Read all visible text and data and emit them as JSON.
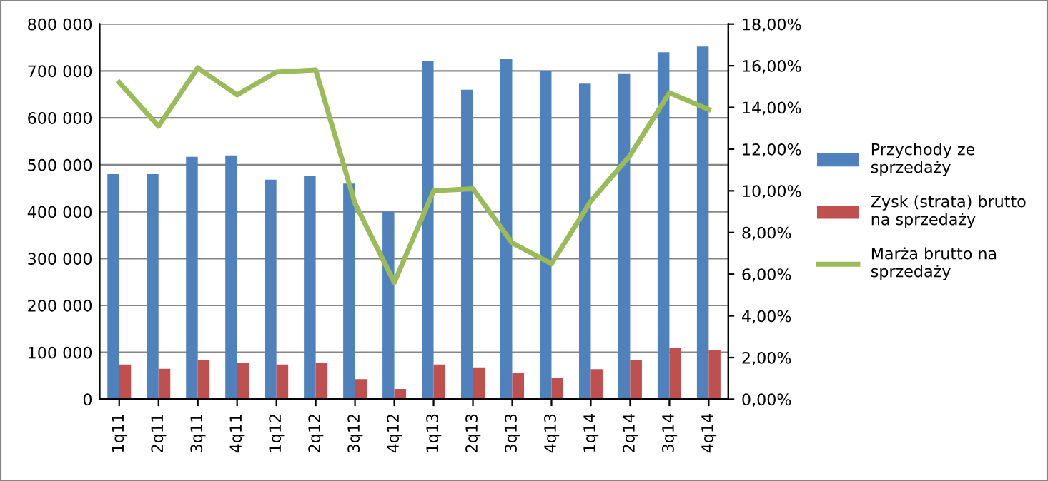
{
  "chart_data": {
    "type": "bar",
    "categories": [
      "1q11",
      "2q11",
      "3q11",
      "4q11",
      "1q12",
      "2q12",
      "3q12",
      "4q12",
      "1q13",
      "2q13",
      "3q13",
      "4q13",
      "1q14",
      "2q14",
      "3q14",
      "4q14"
    ],
    "series": [
      {
        "name": "Przychody ze sprzedaży",
        "color": "#4f81bd",
        "values": [
          480000,
          480000,
          517000,
          520000,
          468000,
          477000,
          460000,
          400000,
          722000,
          660000,
          725000,
          700000,
          673000,
          695000,
          740000,
          752000
        ]
      },
      {
        "name": "Zysk (strata) brutto na sprzedaży",
        "color": "#c0504d",
        "values": [
          74000,
          65000,
          83000,
          77000,
          74000,
          77000,
          43000,
          22000,
          74000,
          68000,
          56000,
          46000,
          64000,
          83000,
          110000,
          104000
        ]
      },
      {
        "name": "Marża brutto na sprzedaży",
        "color": "#9bbb59",
        "type": "line",
        "axis": "y2",
        "values": [
          15.2,
          13.1,
          15.9,
          14.6,
          15.7,
          15.8,
          9.4,
          5.6,
          10.0,
          10.1,
          7.5,
          6.5,
          9.5,
          11.7,
          14.7,
          13.9
        ]
      }
    ],
    "ylim": [
      0,
      800000
    ],
    "yticks": [
      0,
      {
        "value": 100000,
        "label": "100 000"
      },
      {
        "value": 200000,
        "label": "200 000"
      },
      {
        "value": 300000,
        "label": "300 000"
      },
      {
        "value": 400000,
        "label": "400 000"
      },
      {
        "value": 500000,
        "label": "500 000"
      },
      {
        "value": 600000,
        "label": "600 000"
      },
      {
        "value": 700000,
        "label": "700 000"
      },
      {
        "value": 800000,
        "label": "800 000"
      }
    ],
    "y2lim": [
      0,
      18
    ],
    "y2ticks": [
      {
        "value": 0,
        "label": "0,00%"
      },
      {
        "value": 2,
        "label": "2,00%"
      },
      {
        "value": 4,
        "label": "4,00%"
      },
      {
        "value": 6,
        "label": "6,00%"
      },
      {
        "value": 8,
        "label": "8,00%"
      },
      {
        "value": 10,
        "label": "10,00%"
      },
      {
        "value": 12,
        "label": "12,00%"
      },
      {
        "value": 14,
        "label": "14,00%"
      },
      {
        "value": 16,
        "label": "16,00%"
      },
      {
        "value": 18,
        "label": "18,00%"
      }
    ],
    "grid": "y",
    "legend": "right"
  }
}
